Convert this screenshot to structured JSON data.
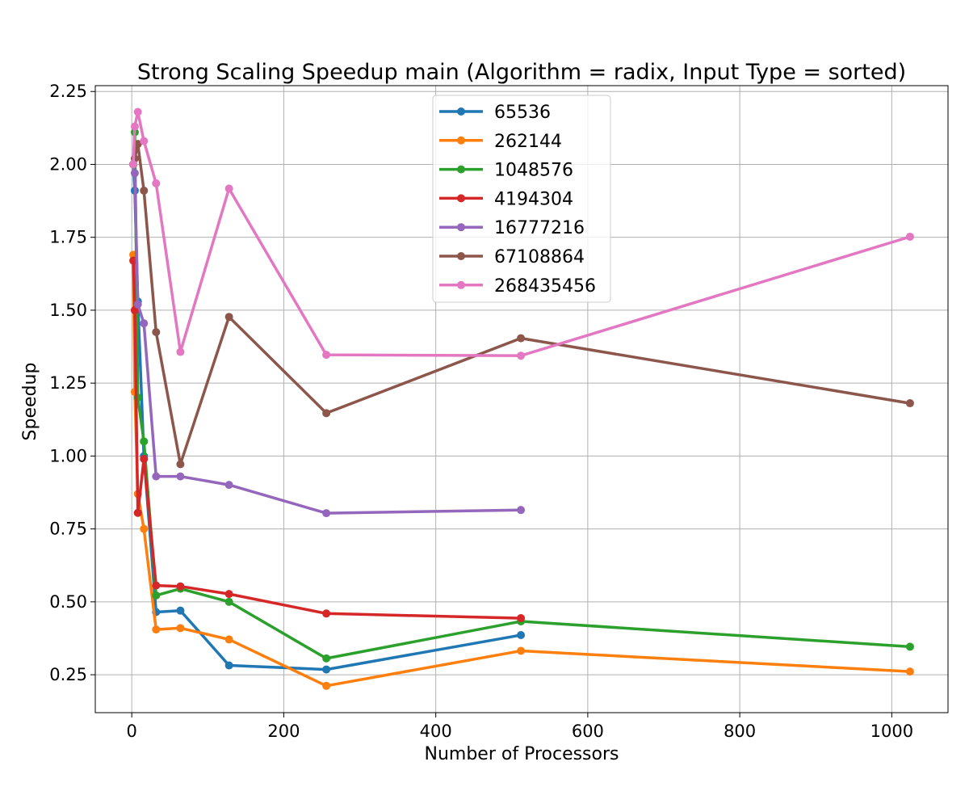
{
  "chart_data": {
    "type": "line",
    "title": "Strong Scaling Speedup main (Algorithm = radix, Input Type = sorted)",
    "xlabel": "Number of Processors",
    "ylabel": "Speedup",
    "xlim": [
      -48,
      1074
    ],
    "ylim": [
      0.12,
      2.27
    ],
    "xticks": [
      0,
      200,
      400,
      600,
      800,
      1000
    ],
    "xtick_labels": [
      "0",
      "200",
      "400",
      "600",
      "800",
      "1000"
    ],
    "yticks": [
      0.25,
      0.5,
      0.75,
      1.0,
      1.25,
      1.5,
      1.75,
      2.0,
      2.25
    ],
    "ytick_labels": [
      "0.25",
      "0.50",
      "0.75",
      "1.00",
      "1.25",
      "1.50",
      "1.75",
      "2.00",
      "2.25"
    ],
    "grid": true,
    "legend_position": "top-center",
    "series": [
      {
        "name": "65536",
        "color": "#1f77b4",
        "x": [
          2,
          4,
          8,
          16,
          32,
          64,
          128,
          256,
          512
        ],
        "y": [
          2.0,
          1.91,
          1.53,
          1.0,
          0.465,
          0.47,
          0.282,
          0.268,
          0.386
        ]
      },
      {
        "name": "262144",
        "color": "#ff7f0e",
        "x": [
          2,
          4,
          8,
          16,
          32,
          64,
          128,
          256,
          512,
          1024
        ],
        "y": [
          1.69,
          1.22,
          0.87,
          0.75,
          0.405,
          0.41,
          0.371,
          0.212,
          0.332,
          0.261
        ]
      },
      {
        "name": "1048576",
        "color": "#2ca02c",
        "x": [
          2,
          4,
          8,
          16,
          32,
          64,
          128,
          256,
          512,
          1024
        ],
        "y": [
          2.0,
          2.11,
          1.2,
          1.05,
          0.522,
          0.545,
          0.5,
          0.306,
          0.433,
          0.346
        ]
      },
      {
        "name": "4194304",
        "color": "#d62728",
        "x": [
          2,
          4,
          8,
          16,
          32,
          64,
          128,
          256,
          512
        ],
        "y": [
          1.67,
          1.5,
          0.805,
          0.99,
          0.556,
          0.553,
          0.527,
          0.46,
          0.444
        ]
      },
      {
        "name": "16777216",
        "color": "#9467bd",
        "x": [
          2,
          4,
          8,
          16,
          32,
          64,
          128,
          256,
          512
        ],
        "y": [
          2.0,
          1.97,
          1.52,
          1.455,
          0.93,
          0.93,
          0.901,
          0.804,
          0.815
        ]
      },
      {
        "name": "67108864",
        "color": "#8c564b",
        "x": [
          2,
          4,
          8,
          16,
          32,
          64,
          128,
          256,
          512,
          1024
        ],
        "y": [
          2.0,
          2.02,
          2.07,
          1.91,
          1.425,
          0.972,
          1.477,
          1.147,
          1.404,
          1.181
        ]
      },
      {
        "name": "268435456",
        "color": "#e377c2",
        "x": [
          2,
          4,
          8,
          16,
          32,
          64,
          128,
          256,
          512,
          1024
        ],
        "y": [
          2.0,
          2.13,
          2.18,
          2.08,
          1.935,
          1.357,
          1.917,
          1.347,
          1.344,
          1.752
        ]
      }
    ]
  }
}
